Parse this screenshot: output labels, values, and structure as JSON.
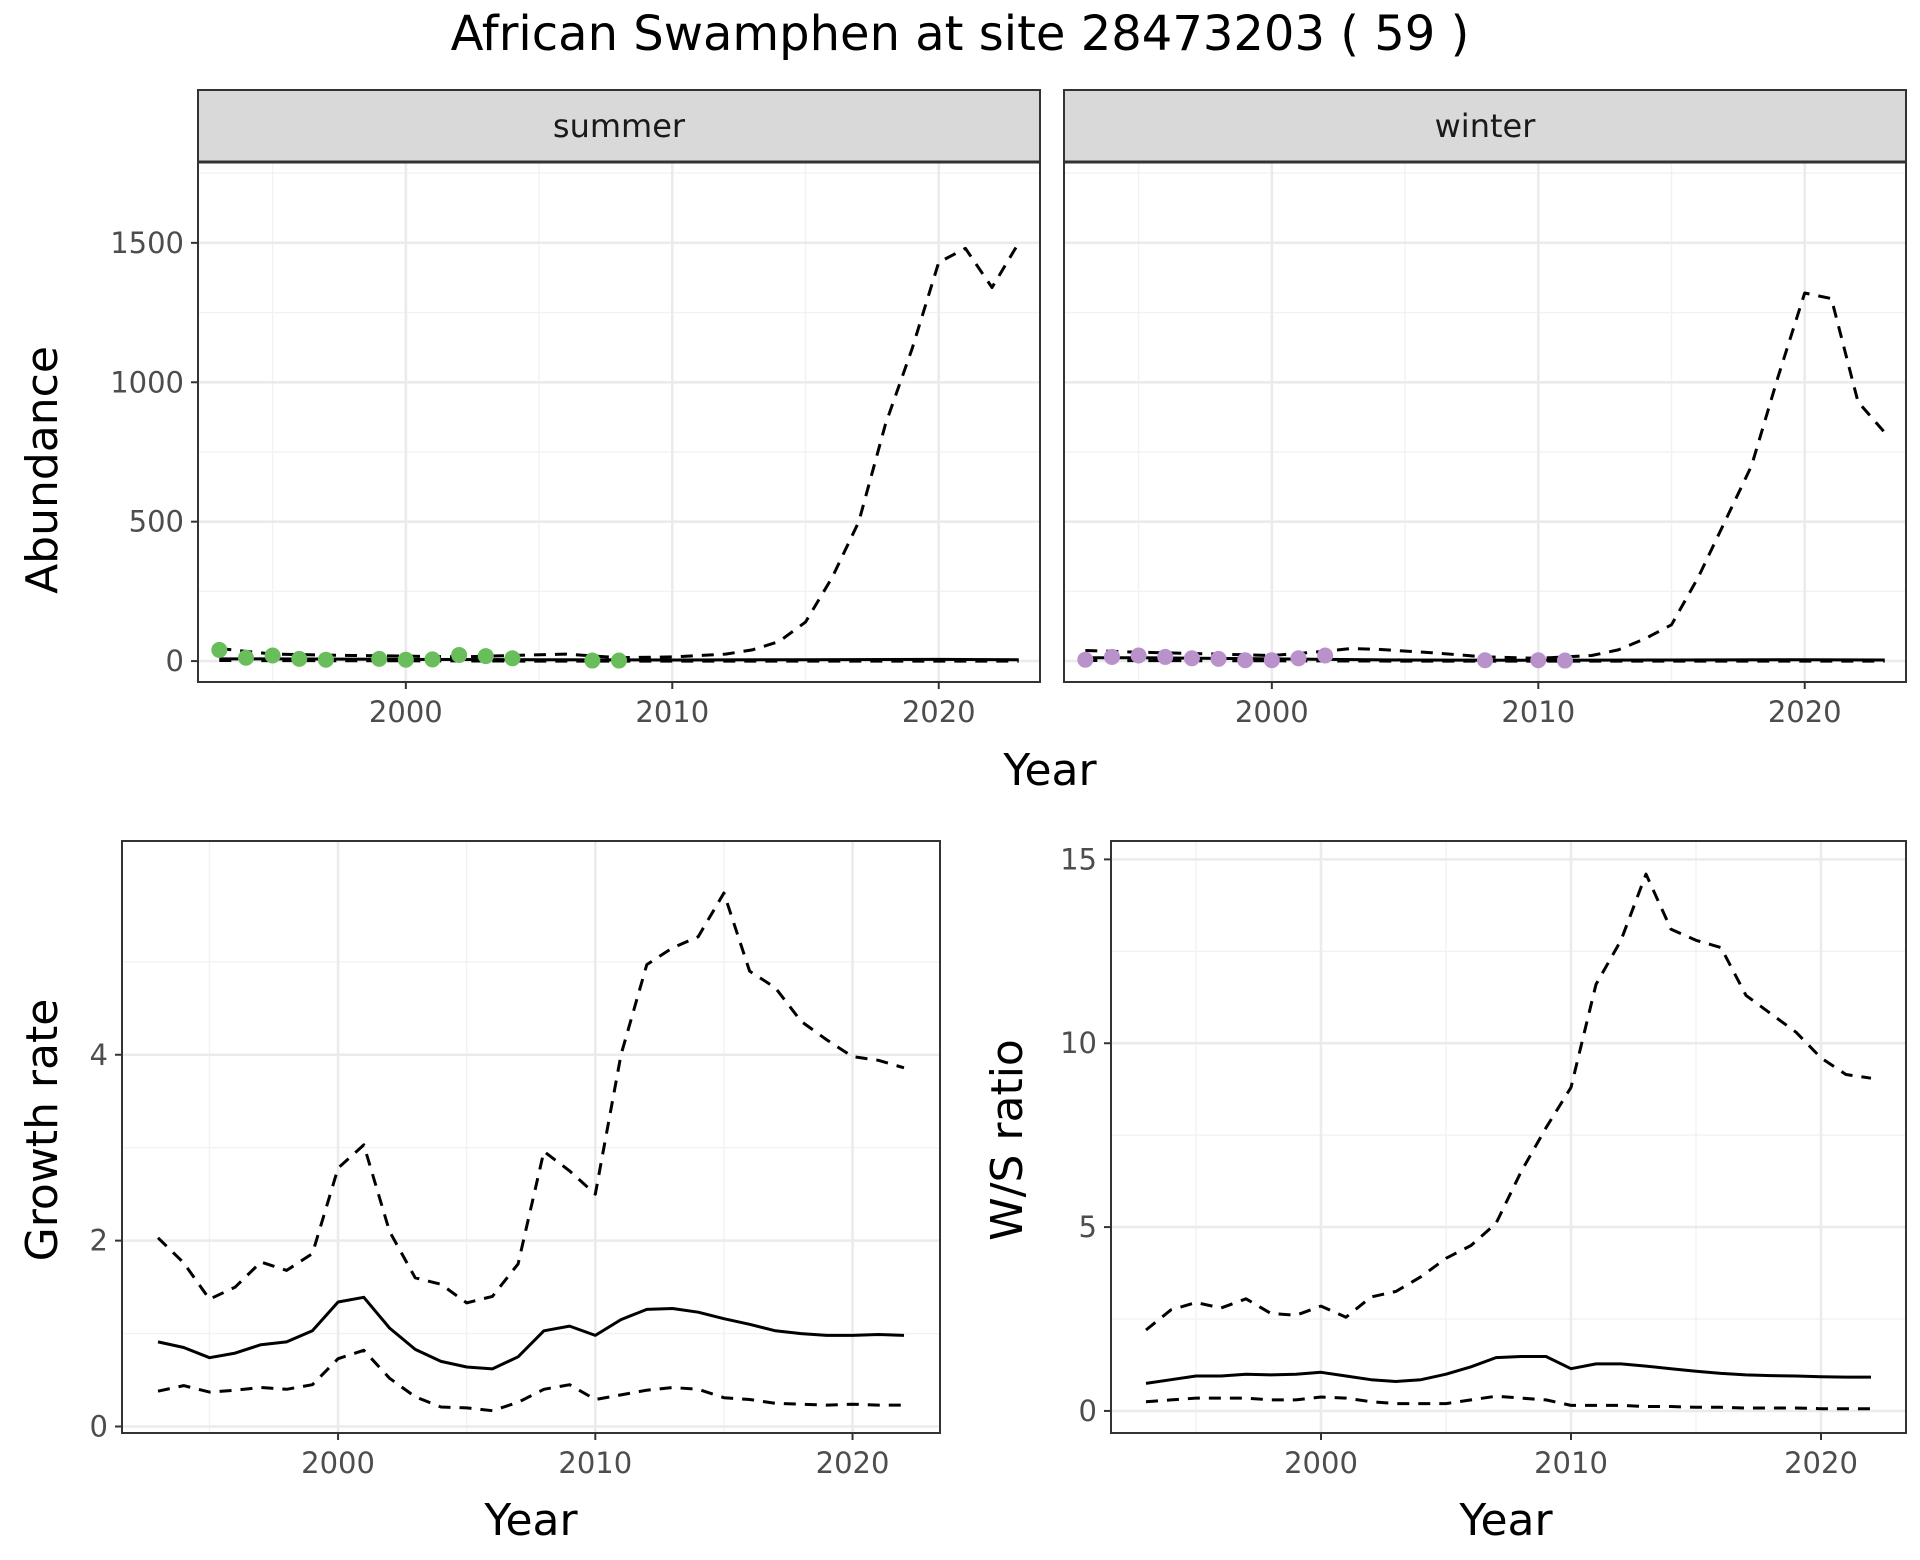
{
  "title": "African Swamphen at site 28473203 ( 59 )",
  "colors": {
    "summer_points": "#6ABD5B",
    "winter_points": "#B992CC",
    "lines": "#000000",
    "strip_fill": "#D9D9D9",
    "grid": "#EBEBEB"
  },
  "chart_data": [
    {
      "type": "line",
      "name": "abundance",
      "xlabel": "Year",
      "ylabel": "Abundance",
      "xlim": [
        1992.2,
        2023.8
      ],
      "ylim": [
        -75,
        1790
      ],
      "x_ticks": [
        2000,
        2010,
        2020
      ],
      "y_ticks": [
        0,
        500,
        1000,
        1500
      ],
      "facets": [
        {
          "label": "summer",
          "point_color": "#6ABD5B",
          "points": {
            "x": [
              1993,
              1994,
              1995,
              1996,
              1997,
              1999,
              2000,
              2001,
              2002,
              2003,
              2004,
              2007,
              2008
            ],
            "y": [
              40,
              12,
              20,
              8,
              5,
              8,
              5,
              6,
              22,
              18,
              10,
              2,
              2
            ]
          },
          "series": [
            {
              "line": "solid",
              "x": [
                1993,
                1995,
                2000,
                2005,
                2010,
                2015,
                2020,
                2023
              ],
              "y": [
                8,
                8,
                6,
                5,
                4,
                5,
                6,
                5
              ]
            },
            {
              "line": "dashed",
              "x": [
                1993,
                1995,
                1998,
                2000,
                2002,
                2004,
                2006,
                2008,
                2010,
                2012,
                2013,
                2014,
                2015,
                2016,
                2017,
                2018,
                2019,
                2020,
                2021,
                2022,
                2023
              ],
              "y": [
                45,
                25,
                20,
                18,
                15,
                20,
                25,
                12,
                15,
                25,
                40,
                70,
                140,
                300,
                500,
                850,
                1120,
                1430,
                1480,
                1340,
                1500
              ]
            },
            {
              "line": "dashed",
              "x": [
                1993,
                2000,
                2005,
                2010,
                2015,
                2020,
                2023
              ],
              "y": [
                2,
                1,
                0,
                0,
                0,
                0,
                0
              ]
            }
          ]
        },
        {
          "label": "winter",
          "point_color": "#B992CC",
          "points": {
            "x": [
              1993,
              1994,
              1995,
              1996,
              1997,
              1998,
              1999,
              2000,
              2001,
              2002,
              2008,
              2010,
              2011
            ],
            "y": [
              5,
              15,
              20,
              15,
              10,
              8,
              3,
              3,
              10,
              20,
              3,
              3,
              2
            ]
          },
          "series": [
            {
              "line": "solid",
              "x": [
                1993,
                1995,
                2000,
                2005,
                2010,
                2015,
                2020,
                2023
              ],
              "y": [
                12,
                12,
                8,
                4,
                3,
                4,
                5,
                4
              ]
            },
            {
              "line": "dashed",
              "x": [
                1993,
                1995,
                1998,
                2000,
                2002,
                2003,
                2004,
                2006,
                2008,
                2010,
                2012,
                2013,
                2014,
                2015,
                2016,
                2017,
                2018,
                2019,
                2020,
                2021,
                2022,
                2023
              ],
              "y": [
                38,
                32,
                25,
                20,
                35,
                45,
                42,
                30,
                15,
                10,
                20,
                40,
                80,
                130,
                300,
                500,
                700,
                1020,
                1320,
                1300,
                930,
                820
              ]
            },
            {
              "line": "dashed",
              "x": [
                1993,
                2000,
                2005,
                2010,
                2015,
                2020,
                2023
              ],
              "y": [
                2,
                1,
                0,
                0,
                0,
                0,
                0
              ]
            }
          ]
        }
      ]
    },
    {
      "type": "line",
      "name": "growth",
      "xlabel": "Year",
      "ylabel": "Growth rate",
      "xlim": [
        1991.6,
        2023.4
      ],
      "ylim": [
        -0.07,
        6.3
      ],
      "x_ticks": [
        2000,
        2010,
        2020
      ],
      "y_ticks": [
        0,
        2,
        4
      ],
      "series": [
        {
          "line": "solid",
          "x": [
            1993,
            1994,
            1995,
            1996,
            1997,
            1998,
            1999,
            2000,
            2001,
            2002,
            2003,
            2004,
            2005,
            2006,
            2007,
            2008,
            2009,
            2010,
            2011,
            2012,
            2013,
            2014,
            2015,
            2016,
            2017,
            2018,
            2019,
            2020,
            2021,
            2022
          ],
          "y": [
            0.91,
            0.85,
            0.74,
            0.79,
            0.88,
            0.91,
            1.03,
            1.34,
            1.39,
            1.06,
            0.83,
            0.7,
            0.64,
            0.62,
            0.75,
            1.03,
            1.08,
            0.98,
            1.15,
            1.26,
            1.27,
            1.23,
            1.16,
            1.1,
            1.03,
            1.0,
            0.98,
            0.98,
            0.99,
            0.98
          ]
        },
        {
          "line": "dashed",
          "x": [
            1993,
            1994,
            1995,
            1996,
            1997,
            1998,
            1999,
            2000,
            2001,
            2002,
            2003,
            2004,
            2005,
            2006,
            2007,
            2008,
            2009,
            2010,
            2011,
            2012,
            2013,
            2014,
            2015,
            2016,
            2017,
            2018,
            2019,
            2020,
            2021,
            2022
          ],
          "y": [
            2.03,
            1.76,
            1.37,
            1.5,
            1.77,
            1.68,
            1.86,
            2.78,
            3.03,
            2.1,
            1.6,
            1.53,
            1.33,
            1.4,
            1.75,
            2.96,
            2.75,
            2.5,
            4.0,
            4.97,
            5.15,
            5.27,
            5.74,
            4.9,
            4.72,
            4.36,
            4.16,
            3.98,
            3.94,
            3.86
          ]
        },
        {
          "line": "dashed",
          "x": [
            1993,
            1994,
            1995,
            1996,
            1997,
            1998,
            1999,
            2000,
            2001,
            2002,
            2003,
            2004,
            2005,
            2006,
            2007,
            2008,
            2009,
            2010,
            2011,
            2012,
            2013,
            2014,
            2015,
            2016,
            2017,
            2018,
            2019,
            2020,
            2021,
            2022
          ],
          "y": [
            0.38,
            0.44,
            0.37,
            0.39,
            0.42,
            0.4,
            0.45,
            0.73,
            0.82,
            0.52,
            0.32,
            0.21,
            0.2,
            0.17,
            0.26,
            0.4,
            0.45,
            0.29,
            0.34,
            0.39,
            0.42,
            0.4,
            0.31,
            0.29,
            0.25,
            0.24,
            0.23,
            0.24,
            0.23,
            0.23
          ]
        }
      ]
    },
    {
      "type": "line",
      "name": "ratio",
      "xlabel": "Year",
      "ylabel": "W/S ratio",
      "xlim": [
        1991.6,
        2023.4
      ],
      "ylim": [
        -0.6,
        15.5
      ],
      "x_ticks": [
        2000,
        2010,
        2020
      ],
      "y_ticks": [
        0,
        5,
        10,
        15
      ],
      "series": [
        {
          "line": "solid",
          "x": [
            1993,
            1994,
            1995,
            1996,
            1997,
            1998,
            1999,
            2000,
            2001,
            2002,
            2003,
            2004,
            2005,
            2006,
            2007,
            2008,
            2009,
            2010,
            2011,
            2012,
            2013,
            2014,
            2015,
            2016,
            2017,
            2018,
            2019,
            2020,
            2021,
            2022
          ],
          "y": [
            0.75,
            0.85,
            0.95,
            0.95,
            1.0,
            0.98,
            1.0,
            1.05,
            0.95,
            0.85,
            0.8,
            0.85,
            1.0,
            1.2,
            1.45,
            1.48,
            1.48,
            1.15,
            1.28,
            1.28,
            1.22,
            1.15,
            1.08,
            1.02,
            0.98,
            0.96,
            0.95,
            0.93,
            0.92,
            0.92
          ]
        },
        {
          "line": "dashed",
          "x": [
            1993,
            1994,
            1995,
            1996,
            1997,
            1998,
            1999,
            2000,
            2001,
            2002,
            2003,
            2004,
            2005,
            2006,
            2007,
            2008,
            2009,
            2010,
            2011,
            2012,
            2013,
            2014,
            2015,
            2016,
            2017,
            2018,
            2019,
            2020,
            2021,
            2022
          ],
          "y": [
            2.2,
            2.75,
            2.95,
            2.8,
            3.05,
            2.65,
            2.6,
            2.85,
            2.55,
            3.1,
            3.25,
            3.65,
            4.15,
            4.5,
            5.1,
            6.5,
            7.7,
            8.8,
            11.6,
            12.8,
            14.6,
            13.1,
            12.8,
            12.6,
            11.3,
            10.8,
            10.3,
            9.6,
            9.15,
            9.05
          ]
        },
        {
          "line": "dashed",
          "x": [
            1993,
            1994,
            1995,
            1996,
            1997,
            1998,
            1999,
            2000,
            2001,
            2002,
            2003,
            2004,
            2005,
            2006,
            2007,
            2008,
            2009,
            2010,
            2011,
            2012,
            2013,
            2014,
            2015,
            2016,
            2017,
            2018,
            2019,
            2020,
            2021,
            2022
          ],
          "y": [
            0.25,
            0.3,
            0.35,
            0.35,
            0.35,
            0.3,
            0.3,
            0.38,
            0.35,
            0.25,
            0.2,
            0.2,
            0.2,
            0.3,
            0.4,
            0.35,
            0.3,
            0.15,
            0.15,
            0.15,
            0.12,
            0.12,
            0.1,
            0.1,
            0.08,
            0.08,
            0.08,
            0.06,
            0.06,
            0.06
          ]
        }
      ]
    }
  ]
}
